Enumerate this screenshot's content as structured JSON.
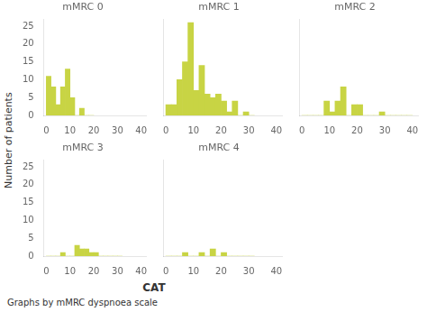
{
  "chart_data": [
    {
      "type": "histogram",
      "title": "mMRC 0",
      "bins": [
        0,
        2,
        4,
        6,
        8,
        10,
        12,
        14,
        16,
        18,
        20
      ],
      "values": [
        11,
        8,
        3,
        8,
        13,
        5,
        0,
        2,
        0,
        0
      ],
      "color": "#c8d444",
      "xlim": [
        -1,
        42
      ],
      "xticks": [
        0,
        10,
        20,
        30,
        40
      ],
      "ylim": [
        0,
        27
      ],
      "yticks": [
        0,
        5,
        10,
        15,
        20,
        25
      ],
      "grid": false
    },
    {
      "type": "histogram",
      "title": "mMRC 1",
      "bins": [
        0,
        2,
        4,
        6,
        8,
        10,
        12,
        14,
        16,
        18,
        20,
        22,
        24,
        26,
        28,
        30,
        32
      ],
      "values": [
        3,
        3,
        10,
        15,
        26,
        7,
        14,
        6,
        5,
        6,
        4,
        1,
        4,
        0,
        1,
        0
      ],
      "color": "#c8d444",
      "xlim": [
        -1,
        42
      ],
      "xticks": [
        0,
        10,
        20,
        30,
        40
      ],
      "ylim": [
        0,
        27
      ],
      "yticks": [
        0,
        5,
        10,
        15,
        20,
        25
      ],
      "grid": false,
      "tick_labels": "x"
    },
    {
      "type": "histogram",
      "title": "mMRC 2",
      "bins": [
        0,
        2,
        4,
        6,
        8,
        10,
        12,
        14,
        16,
        18,
        20,
        22,
        24,
        26,
        28,
        30,
        32,
        34,
        36,
        38,
        40
      ],
      "values": [
        0,
        0,
        0,
        0,
        4,
        1,
        4,
        8,
        0,
        3,
        3,
        0,
        0,
        0,
        1,
        0,
        0,
        0,
        0,
        0
      ],
      "color": "#c8d444",
      "xlim": [
        -1,
        42
      ],
      "xticks": [
        0,
        10,
        20,
        30,
        40
      ],
      "ylim": [
        0,
        27
      ],
      "yticks": [
        0,
        5,
        10,
        15,
        20,
        25
      ],
      "grid": false,
      "tick_labels": "x"
    },
    {
      "type": "histogram",
      "title": "mMRC 3",
      "bins": [
        0,
        2,
        4,
        6,
        8,
        10,
        12,
        14,
        16,
        18,
        20,
        22,
        24,
        26,
        28,
        30,
        32
      ],
      "values": [
        0,
        0,
        0,
        1,
        0,
        0,
        3,
        2,
        2,
        1,
        1,
        0,
        0,
        0,
        0,
        0
      ],
      "color": "#c8d444",
      "xlim": [
        -1,
        42
      ],
      "xticks": [
        0,
        10,
        20,
        30,
        40
      ],
      "ylim": [
        0,
        27
      ],
      "yticks": [
        0,
        5,
        10,
        15,
        20,
        25
      ],
      "grid": false
    },
    {
      "type": "histogram",
      "title": "mMRC 4",
      "bins": [
        0,
        2,
        4,
        6,
        8,
        10,
        12,
        14,
        16,
        18,
        20,
        22,
        24,
        26,
        28,
        30,
        32
      ],
      "values": [
        0,
        0,
        0,
        1,
        0,
        0,
        1,
        0,
        2,
        0,
        1,
        0,
        0,
        0,
        0,
        0
      ],
      "color": "#c8d444",
      "xlim": [
        -1,
        42
      ],
      "xticks": [
        0,
        10,
        20,
        30,
        40
      ],
      "ylim": [
        0,
        27
      ],
      "yticks": [
        0,
        5,
        10,
        15,
        20,
        25
      ],
      "grid": false,
      "tick_labels": "x"
    }
  ],
  "xlabel": "CAT",
  "ylabel": "Number of patients",
  "annotations": [
    "Graphs by mMRC dyspnoea scale"
  ]
}
